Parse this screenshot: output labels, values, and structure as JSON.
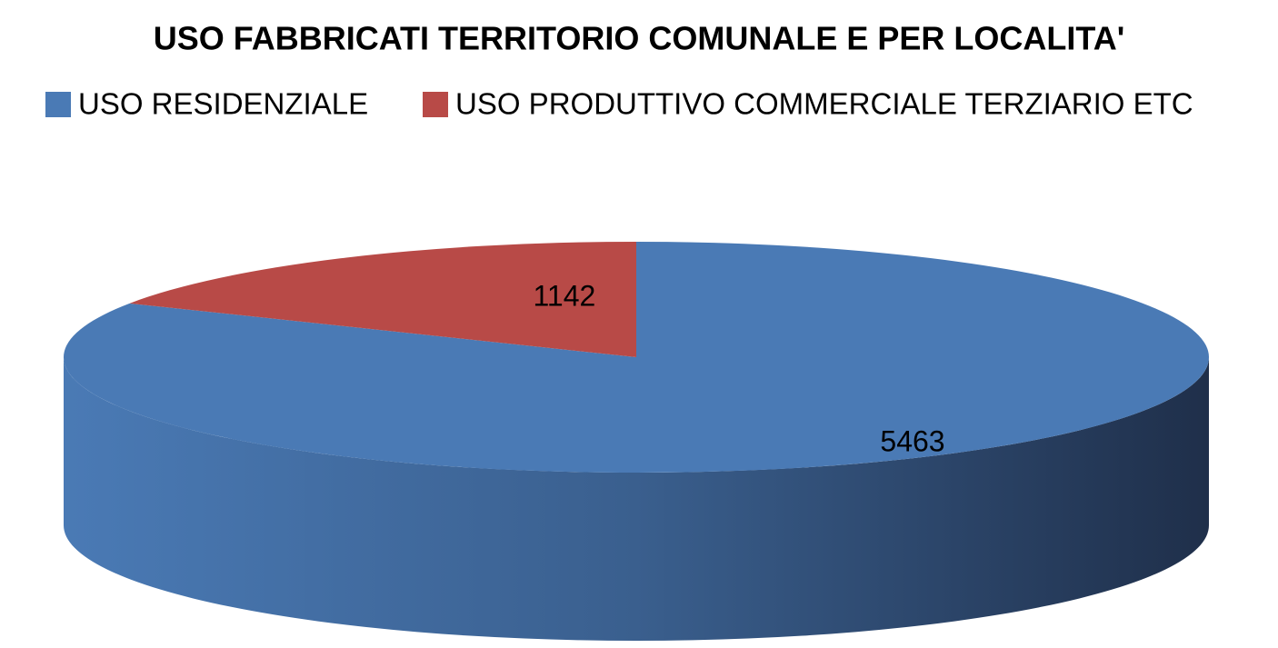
{
  "chart_data": {
    "type": "pie3d",
    "title": "USO FABBRICATI TERRITORIO COMUNALE E PER LOCALITA'",
    "categories": [
      "USO RESIDENZIALE",
      "USO PRODUTTIVO COMMERCIALE TERZIARIO ETC"
    ],
    "values": [
      5463,
      1142
    ],
    "colors": [
      "#4a7ab5",
      "#b84a47"
    ],
    "legend": "top"
  }
}
